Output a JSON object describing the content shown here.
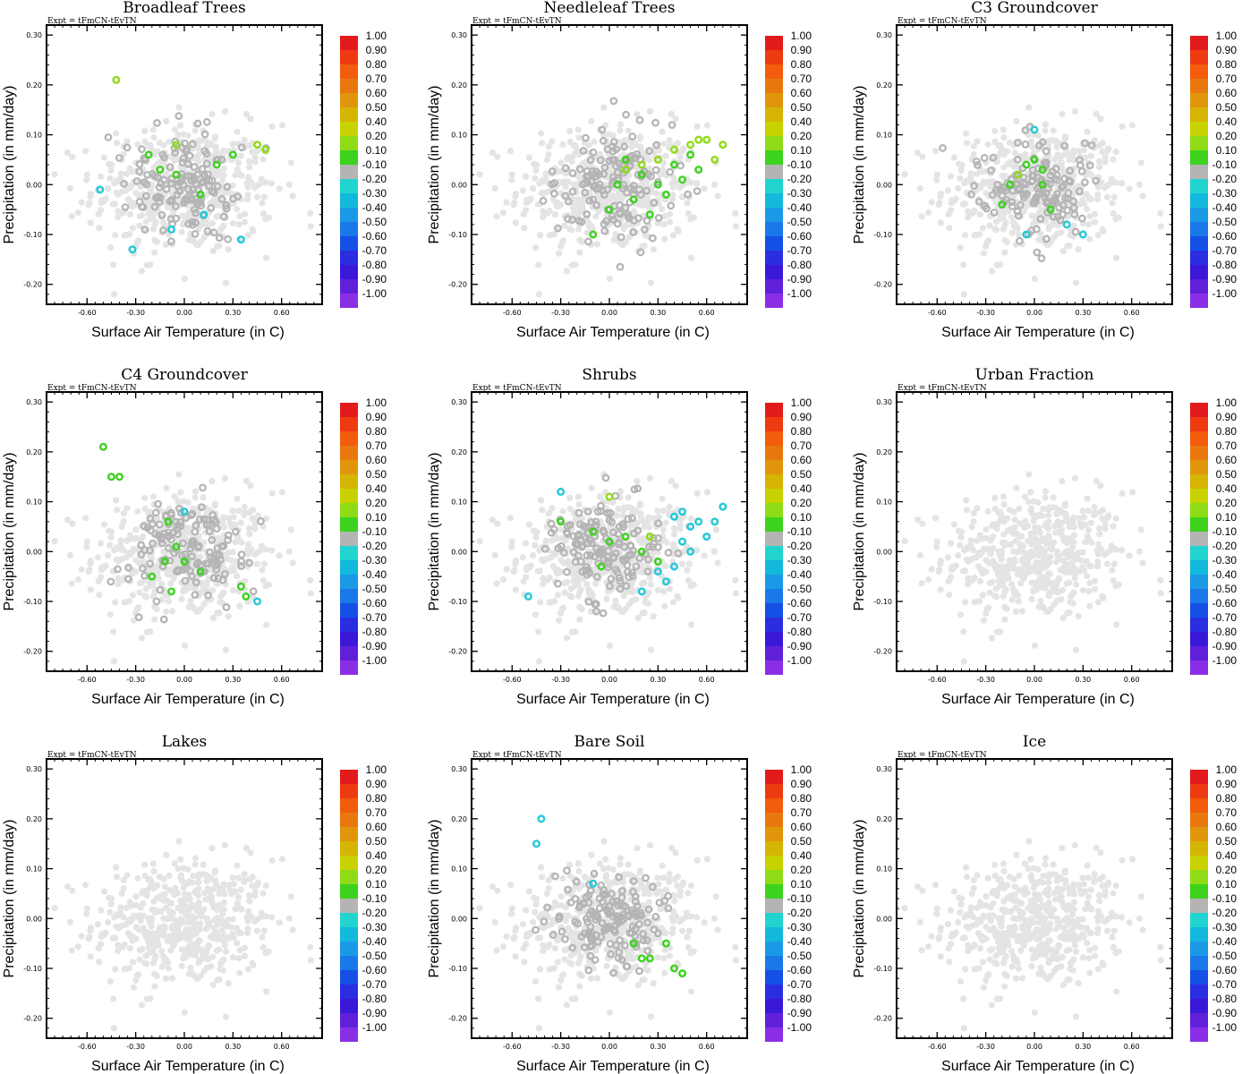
{
  "figure": {
    "expt_label": "Expt = tFmCN-tEvTN"
  },
  "chart_data": {
    "type": "scatter",
    "xlabel": "Surface Air Temperature (in C)",
    "ylabel": "Precipitation (in mm/day)",
    "xlim": [
      -0.85,
      0.85
    ],
    "ylim": [
      -0.24,
      0.32
    ],
    "xticks": [
      -0.6,
      -0.3,
      0.0,
      0.3,
      0.6
    ],
    "xtick_labels": [
      "-0.60",
      "-0.30",
      "0.00",
      "0.30",
      "0.60"
    ],
    "yticks": [
      -0.2,
      -0.1,
      0.0,
      0.1,
      0.2,
      0.3
    ],
    "ytick_labels": [
      "-0.20",
      "-0.10",
      "0.00",
      "0.10",
      "0.20",
      "0.30"
    ],
    "colorbar": {
      "labels": [
        "1.00",
        "0.90",
        "0.80",
        "0.70",
        "0.60",
        "0.50",
        "0.40",
        "0.20",
        "0.10",
        "-0.10",
        "-0.20",
        "-0.30",
        "-0.40",
        "-0.50",
        "-0.60",
        "-0.70",
        "-0.80",
        "-0.90",
        "-1.00"
      ],
      "colors": [
        "#e31a1c",
        "#ee3a10",
        "#f25c0c",
        "#e8780e",
        "#e0950a",
        "#d6b404",
        "#c8d200",
        "#8fdc16",
        "#3cd21e",
        "#b4b4b4",
        "#22d4cf",
        "#12b9dc",
        "#1a9ae6",
        "#1a78e8",
        "#1450e6",
        "#2a2ee0",
        "#3b18d8",
        "#6020da",
        "#8a2ee6"
      ]
    },
    "panels": [
      {
        "title": "Broadleaf Trees",
        "cloud": {
          "cx": 0.0,
          "cy": 0.0,
          "sx": 0.17,
          "sy": 0.055,
          "n": 140
        },
        "colored": [
          [
            -0.22,
            0.06,
            "green"
          ],
          [
            -0.05,
            0.02,
            "green"
          ],
          [
            0.1,
            -0.02,
            "green"
          ],
          [
            0.2,
            0.04,
            "green"
          ],
          [
            0.3,
            0.06,
            "green"
          ],
          [
            -0.15,
            0.03,
            "green"
          ],
          [
            0.45,
            0.08,
            "yellowgreen"
          ],
          [
            0.5,
            0.07,
            "yellowgreen"
          ],
          [
            -0.42,
            0.21,
            "yellowgreen"
          ],
          [
            -0.05,
            0.08,
            "yellowgreen"
          ],
          [
            -0.52,
            -0.01,
            "cyan"
          ],
          [
            -0.32,
            -0.13,
            "cyan"
          ],
          [
            0.12,
            -0.06,
            "cyan"
          ],
          [
            0.35,
            -0.11,
            "cyan"
          ],
          [
            -0.08,
            -0.09,
            "cyan"
          ]
        ]
      },
      {
        "title": "Needleleaf Trees",
        "cloud": {
          "cx": 0.05,
          "cy": 0.0,
          "sx": 0.18,
          "sy": 0.055,
          "n": 140
        },
        "colored": [
          [
            0.1,
            0.05,
            "green"
          ],
          [
            0.2,
            0.02,
            "green"
          ],
          [
            0.3,
            0.0,
            "green"
          ],
          [
            0.4,
            0.04,
            "green"
          ],
          [
            0.5,
            0.06,
            "green"
          ],
          [
            0.15,
            -0.03,
            "green"
          ],
          [
            0.25,
            -0.06,
            "green"
          ],
          [
            0.35,
            -0.02,
            "green"
          ],
          [
            0.45,
            0.01,
            "green"
          ],
          [
            0.55,
            0.03,
            "green"
          ],
          [
            0.05,
            0.0,
            "green"
          ],
          [
            -0.1,
            -0.1,
            "green"
          ],
          [
            0.0,
            -0.05,
            "green"
          ],
          [
            0.6,
            0.09,
            "yellowgreen"
          ],
          [
            0.7,
            0.08,
            "yellowgreen"
          ],
          [
            0.5,
            0.08,
            "yellowgreen"
          ],
          [
            0.4,
            0.07,
            "yellowgreen"
          ],
          [
            0.3,
            0.05,
            "yellowgreen"
          ],
          [
            0.2,
            0.04,
            "yellowgreen"
          ],
          [
            0.65,
            0.05,
            "yellowgreen"
          ],
          [
            0.1,
            0.03,
            "yellowgreen"
          ],
          [
            0.55,
            0.09,
            "yellowgreen"
          ]
        ]
      },
      {
        "title": "C3 Groundcover",
        "cloud": {
          "cx": 0.0,
          "cy": 0.0,
          "sx": 0.17,
          "sy": 0.05,
          "n": 140
        },
        "colored": [
          [
            -0.1,
            0.02,
            "yellowgreen"
          ],
          [
            -0.05,
            0.04,
            "green"
          ],
          [
            0.0,
            0.05,
            "green"
          ],
          [
            0.05,
            0.03,
            "green"
          ],
          [
            -0.15,
            0.0,
            "green"
          ],
          [
            0.1,
            -0.05,
            "green"
          ],
          [
            -0.2,
            -0.04,
            "green"
          ],
          [
            0.05,
            0.0,
            "green"
          ],
          [
            0.0,
            0.11,
            "cyan"
          ],
          [
            -0.05,
            -0.1,
            "cyan"
          ],
          [
            0.2,
            -0.08,
            "cyan"
          ],
          [
            0.3,
            -0.1,
            "cyan"
          ]
        ]
      },
      {
        "title": "C4 Groundcover",
        "cloud": {
          "cx": 0.0,
          "cy": 0.0,
          "sx": 0.17,
          "sy": 0.05,
          "n": 140
        },
        "colored": [
          [
            -0.45,
            0.15,
            "green"
          ],
          [
            -0.4,
            0.15,
            "green"
          ],
          [
            -0.1,
            0.06,
            "green"
          ],
          [
            -0.05,
            0.01,
            "green"
          ],
          [
            -0.12,
            -0.02,
            "green"
          ],
          [
            0.0,
            -0.02,
            "green"
          ],
          [
            0.1,
            -0.04,
            "green"
          ],
          [
            -0.2,
            -0.05,
            "green"
          ],
          [
            -0.08,
            -0.08,
            "green"
          ],
          [
            0.35,
            -0.07,
            "green"
          ],
          [
            0.38,
            -0.09,
            "green"
          ],
          [
            -0.5,
            0.21,
            "green"
          ],
          [
            0.45,
            -0.1,
            "cyan"
          ],
          [
            0.0,
            0.08,
            "cyan"
          ]
        ]
      },
      {
        "title": "Shrubs",
        "cloud": {
          "cx": 0.0,
          "cy": 0.0,
          "sx": 0.17,
          "sy": 0.055,
          "n": 140
        },
        "colored": [
          [
            -0.1,
            0.04,
            "green"
          ],
          [
            0.0,
            0.02,
            "green"
          ],
          [
            0.1,
            0.03,
            "green"
          ],
          [
            0.2,
            0.0,
            "green"
          ],
          [
            0.3,
            -0.02,
            "green"
          ],
          [
            -0.05,
            -0.03,
            "green"
          ],
          [
            -0.3,
            0.06,
            "green"
          ],
          [
            0.25,
            0.03,
            "yellowgreen"
          ],
          [
            0.0,
            0.11,
            "yellowgreen"
          ],
          [
            0.4,
            0.07,
            "cyan"
          ],
          [
            0.45,
            0.08,
            "cyan"
          ],
          [
            0.5,
            0.05,
            "cyan"
          ],
          [
            0.55,
            0.06,
            "cyan"
          ],
          [
            0.6,
            0.03,
            "cyan"
          ],
          [
            0.5,
            0.0,
            "cyan"
          ],
          [
            0.4,
            -0.03,
            "cyan"
          ],
          [
            0.35,
            -0.06,
            "cyan"
          ],
          [
            0.2,
            -0.08,
            "cyan"
          ],
          [
            0.3,
            -0.04,
            "cyan"
          ],
          [
            -0.5,
            -0.09,
            "cyan"
          ],
          [
            -0.3,
            0.12,
            "cyan"
          ],
          [
            0.65,
            0.06,
            "cyan"
          ],
          [
            0.7,
            0.09,
            "cyan"
          ],
          [
            0.45,
            0.02,
            "cyan"
          ]
        ]
      },
      {
        "title": "Urban Fraction",
        "cloud": {
          "cx": 0.0,
          "cy": 0.0,
          "sx": 0.17,
          "sy": 0.05,
          "n": 0
        },
        "colored": []
      },
      {
        "title": "Lakes",
        "cloud": {
          "cx": 0.0,
          "cy": 0.0,
          "sx": 0.17,
          "sy": 0.05,
          "n": 0
        },
        "colored": []
      },
      {
        "title": "Bare Soil",
        "cloud": {
          "cx": 0.0,
          "cy": 0.0,
          "sx": 0.17,
          "sy": 0.045,
          "n": 150
        },
        "colored": [
          [
            -0.45,
            0.15,
            "cyan"
          ],
          [
            -0.42,
            0.2,
            "cyan"
          ],
          [
            -0.1,
            0.07,
            "cyan"
          ],
          [
            0.15,
            -0.05,
            "green"
          ],
          [
            0.2,
            -0.08,
            "green"
          ],
          [
            0.35,
            -0.05,
            "green"
          ],
          [
            0.4,
            -0.1,
            "green"
          ],
          [
            0.45,
            -0.11,
            "green"
          ],
          [
            0.25,
            -0.08,
            "green"
          ]
        ]
      },
      {
        "title": "Ice",
        "cloud": {
          "cx": 0.0,
          "cy": 0.0,
          "sx": 0.17,
          "sy": 0.05,
          "n": 0
        },
        "colored": []
      }
    ],
    "light_cloud": {
      "cx": 0.0,
      "cy": -0.01,
      "sx": 0.28,
      "sy": 0.065,
      "n": 520
    },
    "point_colors": {
      "light": "#e4e4e4",
      "gray": "#b4b4b4",
      "green": "#3cd21e",
      "yellowgreen": "#8fdc16",
      "cyan": "#22c8d8"
    }
  }
}
